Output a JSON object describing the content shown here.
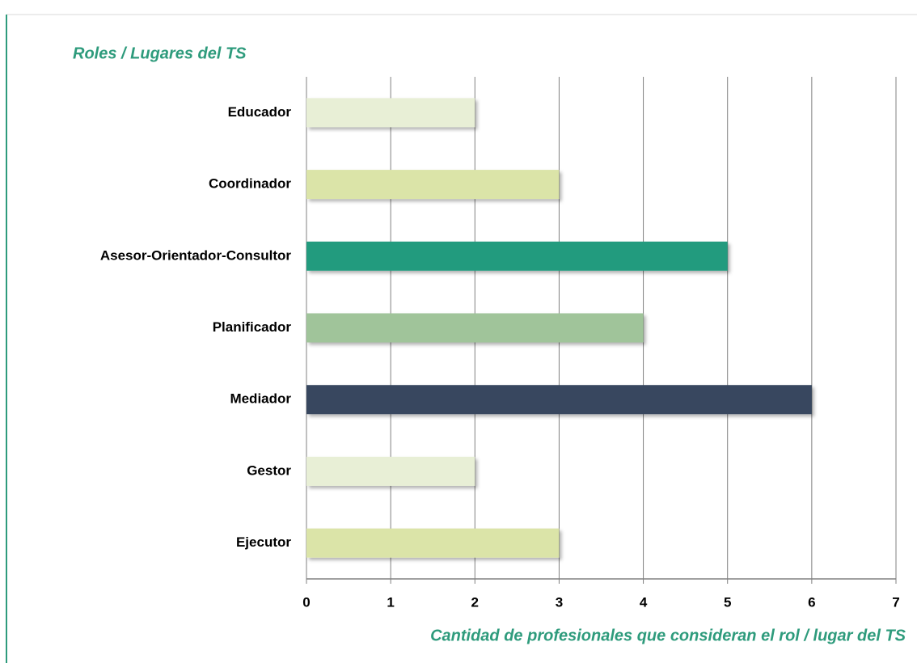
{
  "chart_data": {
    "type": "bar",
    "orientation": "horizontal",
    "y_label": "Roles / Lugares del TS",
    "x_label": "Cantidad de profesionales que consideran el rol / lugar del TS",
    "categories": [
      "Educador",
      "Coordinador",
      "Asesor-Orientador-Consultor",
      "Planificador",
      "Mediador",
      "Gestor",
      "Ejecutor"
    ],
    "values": [
      2,
      3,
      5,
      4,
      6,
      2,
      3
    ],
    "colors": [
      "#e8efd6",
      "#dbe4a8",
      "#239b7e",
      "#a0c49a",
      "#37475f",
      "#e8efd6",
      "#dbe4a8"
    ],
    "xlim": [
      0,
      7
    ],
    "xticks": [
      0,
      1,
      2,
      3,
      4,
      5,
      6,
      7
    ],
    "grid": true
  }
}
